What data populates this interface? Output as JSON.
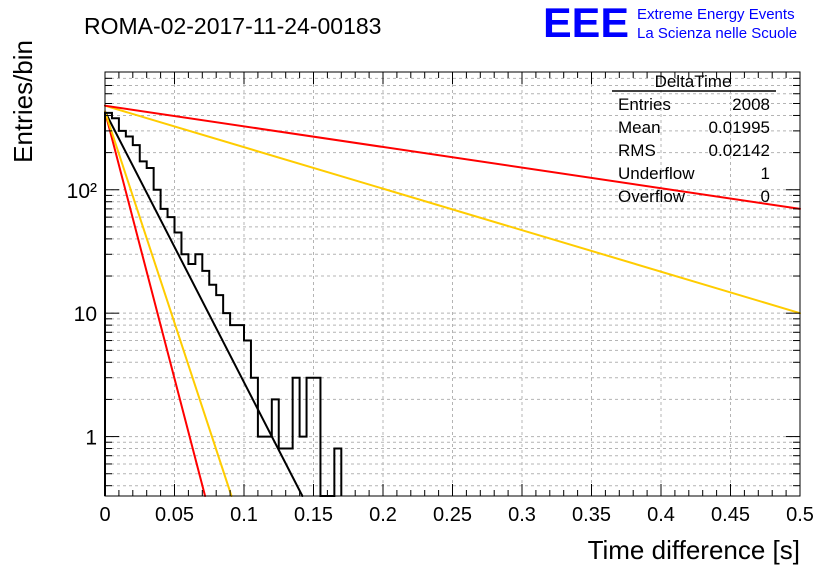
{
  "chart_data": {
    "type": "histogram",
    "title": "ROMA-02-2017-11-24-00183",
    "xlabel": "Time difference [s]",
    "ylabel": "Entries/bin",
    "xlim": [
      0,
      0.5
    ],
    "ylim": [
      0.33,
      900
    ],
    "yscale": "log",
    "grid": true,
    "xticks": [
      0,
      0.05,
      0.1,
      0.15,
      0.2,
      0.25,
      0.3,
      0.35,
      0.4,
      0.45,
      0.5
    ],
    "xtick_labels": [
      "0",
      "0.05",
      "0.1",
      "0.15",
      "0.2",
      "0.25",
      "0.3",
      "0.35",
      "0.4",
      "0.45",
      "0.5"
    ],
    "yticks_major": [
      1,
      10,
      100
    ],
    "ytick_labels": [
      "1",
      "10",
      "10²"
    ],
    "histogram": {
      "bin_width": 0.005,
      "bin_edges_start": 0,
      "values": [
        420,
        380,
        300,
        270,
        230,
        170,
        150,
        100,
        70,
        60,
        45,
        30,
        25,
        30,
        22,
        17,
        14,
        10,
        8,
        8,
        6,
        3,
        1,
        1,
        2,
        0.8,
        0.8,
        3,
        1,
        3,
        3,
        0,
        0,
        0.8
      ],
      "color": "#000000"
    },
    "fits": [
      {
        "color": "#000000",
        "x0": 0.0,
        "y0": 430,
        "x1": 0.142,
        "y1": 0.33
      },
      {
        "color": "#ff0000",
        "x0": 0.0,
        "y0": 430,
        "x1": 0.072,
        "y1": 0.33
      },
      {
        "color": "#ffcc00",
        "x0": 0.0,
        "y0": 430,
        "x1": 0.091,
        "y1": 0.33
      },
      {
        "color": "#ffcc00",
        "x0": 0.0,
        "y0": 480,
        "x1": 0.5,
        "y1": 10
      },
      {
        "color": "#ff0000",
        "x0": 0.0,
        "y0": 480,
        "x1": 0.5,
        "y1": 70
      }
    ],
    "stats_box": {
      "title": "DeltaTime",
      "rows": [
        {
          "label": "Entries",
          "value": "2008"
        },
        {
          "label": "Mean",
          "value": "0.01995"
        },
        {
          "label": "RMS",
          "value": "0.02142"
        },
        {
          "label": "Underflow",
          "value": "1"
        },
        {
          "label": "Overflow",
          "value": "0"
        }
      ]
    }
  },
  "logo": {
    "text": "EEE",
    "line1": "Extreme Energy Events",
    "line2": "La Scienza nelle Scuole",
    "color": "#0000ff"
  }
}
